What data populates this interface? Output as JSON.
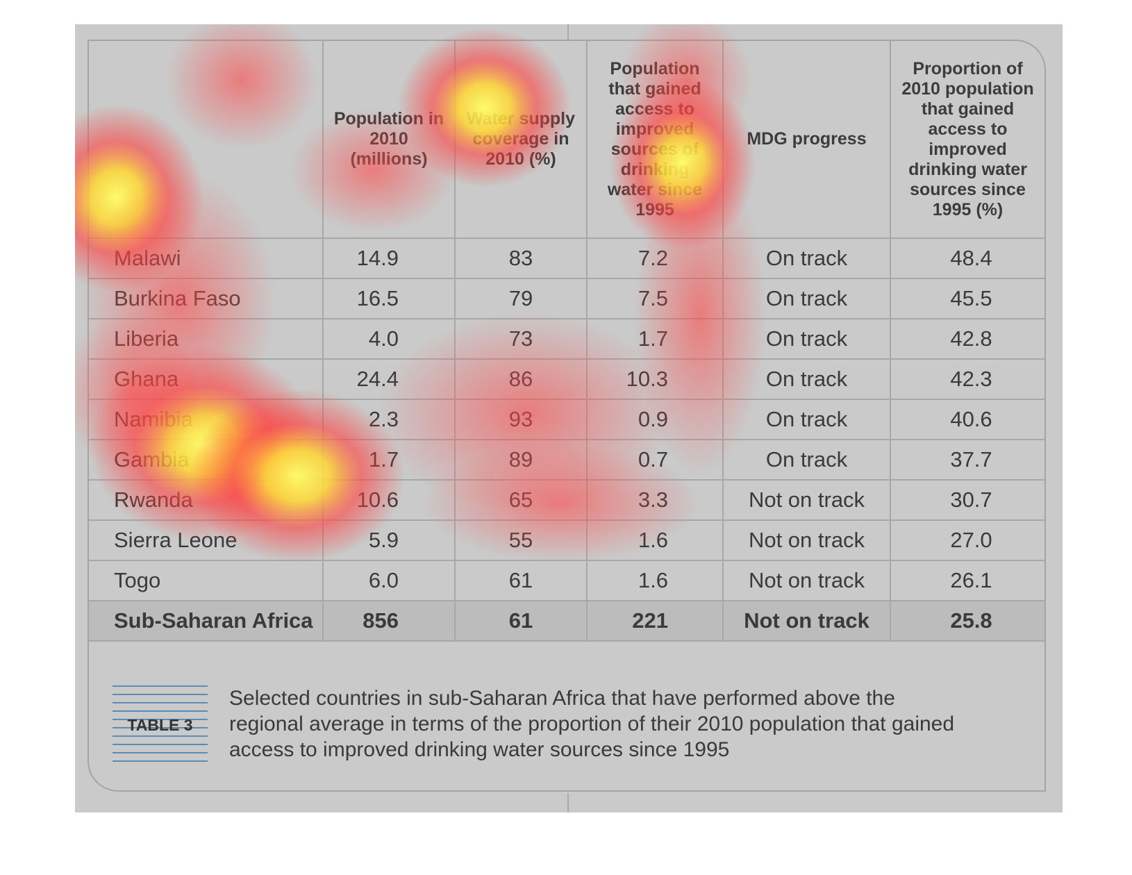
{
  "colors": {
    "panel_background": "#cacaca",
    "total_row_background": "#bcbcbc",
    "grid_lines": "#a7a7a7",
    "tag_lines": "#5a8cb8",
    "heatmap_hot": "#ffff33",
    "heatmap_warm": "#ff3c3c"
  },
  "chart_data": {
    "type": "table",
    "columns": [
      "",
      "Population in 2010 (millions)",
      "Water supply coverage in 2010 (%)",
      "Population that gained access to improved sources of drinking water since 1995",
      "MDG progress",
      "Proportion of 2010 population that gained access to improved drinking water sources since 1995 (%)"
    ],
    "rows": [
      {
        "country": "Malawi",
        "population_2010": "14.9",
        "coverage_2010": "83",
        "gained_access": "7.2",
        "mdg": "On track",
        "proportion": "48.4"
      },
      {
        "country": "Burkina Faso",
        "population_2010": "16.5",
        "coverage_2010": "79",
        "gained_access": "7.5",
        "mdg": "On track",
        "proportion": "45.5"
      },
      {
        "country": "Liberia",
        "population_2010": "4.0",
        "coverage_2010": "73",
        "gained_access": "1.7",
        "mdg": "On track",
        "proportion": "42.8"
      },
      {
        "country": "Ghana",
        "population_2010": "24.4",
        "coverage_2010": "86",
        "gained_access": "10.3",
        "mdg": "On track",
        "proportion": "42.3"
      },
      {
        "country": "Namibia",
        "population_2010": "2.3",
        "coverage_2010": "93",
        "gained_access": "0.9",
        "mdg": "On track",
        "proportion": "40.6"
      },
      {
        "country": "Gambia",
        "population_2010": "1.7",
        "coverage_2010": "89",
        "gained_access": "0.7",
        "mdg": "On track",
        "proportion": "37.7"
      },
      {
        "country": "Rwanda",
        "population_2010": "10.6",
        "coverage_2010": "65",
        "gained_access": "3.3",
        "mdg": "Not on track",
        "proportion": "30.7"
      },
      {
        "country": "Sierra Leone",
        "population_2010": "5.9",
        "coverage_2010": "55",
        "gained_access": "1.6",
        "mdg": "Not on track",
        "proportion": "27.0"
      },
      {
        "country": "Togo",
        "population_2010": "6.0",
        "coverage_2010": "61",
        "gained_access": "1.6",
        "mdg": "Not on track",
        "proportion": "26.1"
      }
    ],
    "total": {
      "country": "Sub-Saharan Africa",
      "population_2010": "856",
      "coverage_2010": "61",
      "gained_access": "221",
      "mdg": "Not on track",
      "proportion": "25.8"
    }
  },
  "caption": {
    "tag": "TABLE 3",
    "text": "Selected countries in sub-Saharan Africa that have performed above the regional average in terms of the proportion of their 2010 population that gained access to improved drinking water sources since 1995"
  }
}
